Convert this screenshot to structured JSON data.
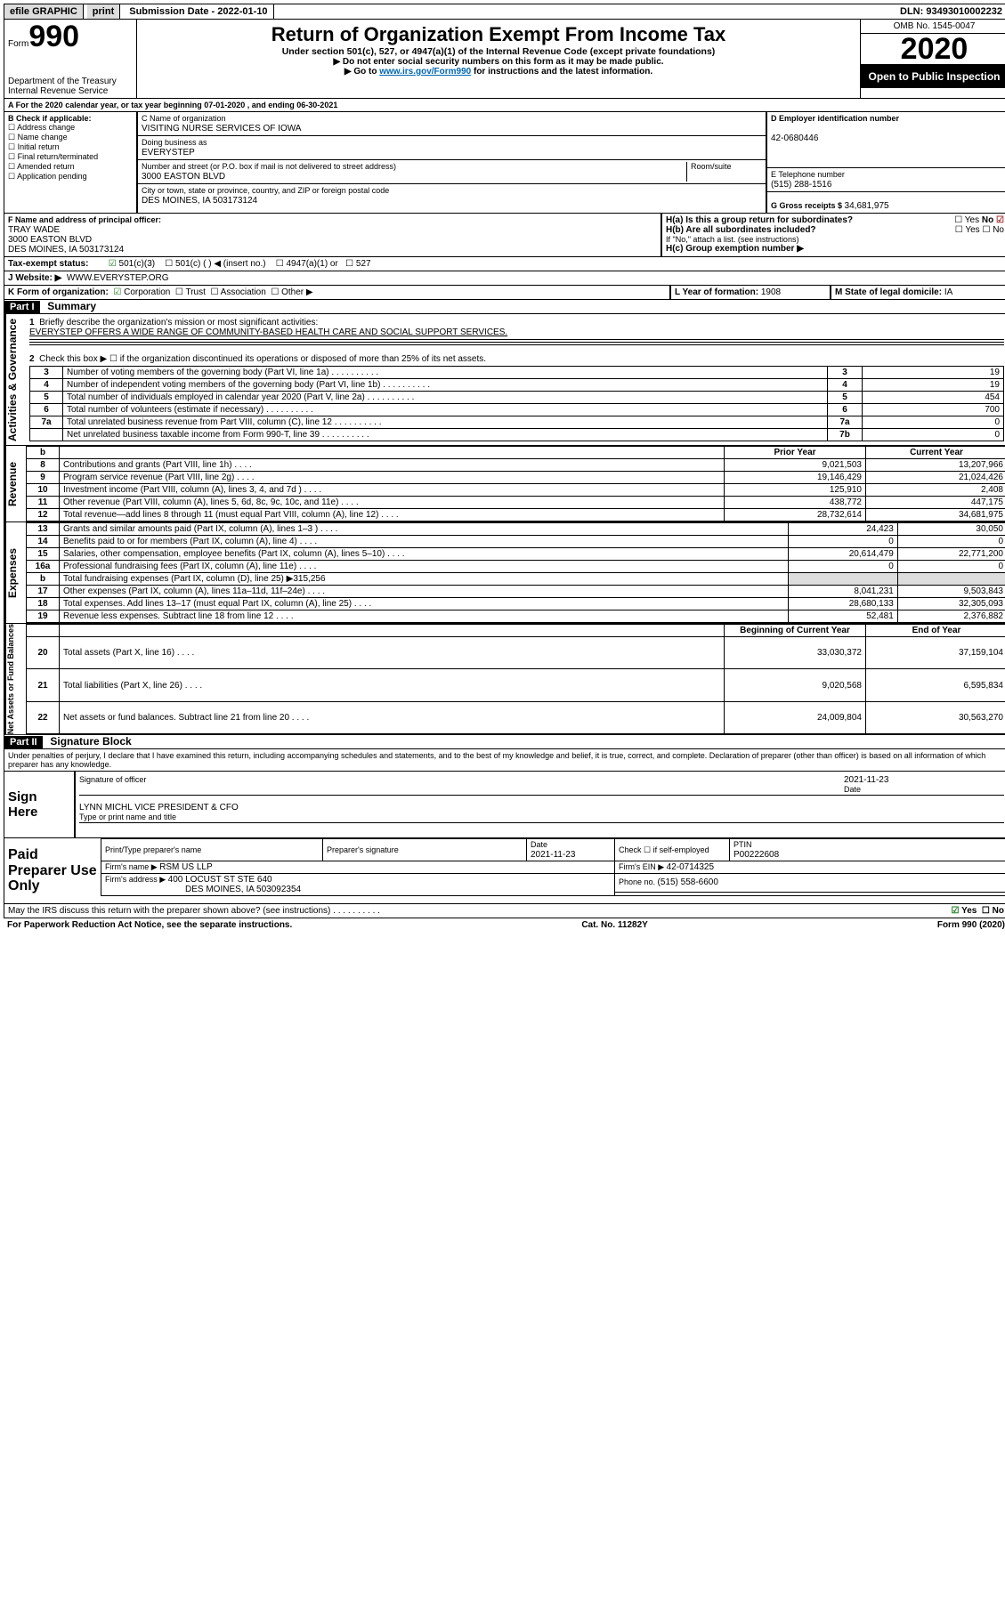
{
  "top_bar": {
    "efile": "efile GRAPHIC",
    "print": "print",
    "sub_label": "Submission Date - ",
    "sub_date": "2022-01-10",
    "dln_label": "DLN: ",
    "dln": "93493010002232"
  },
  "header": {
    "form_label": "Form",
    "form_num": "990",
    "dept": "Department of the Treasury",
    "irs": "Internal Revenue Service",
    "title": "Return of Organization Exempt From Income Tax",
    "subtitle": "Under section 501(c), 527, or 4947(a)(1) of the Internal Revenue Code (except private foundations)",
    "line1": "Do not enter social security numbers on this form as it may be made public.",
    "line2_pre": "Go to ",
    "line2_link": "www.irs.gov/Form990",
    "line2_post": " for instructions and the latest information.",
    "omb": "OMB No. 1545-0047",
    "year": "2020",
    "open": "Open to Public Inspection"
  },
  "period": {
    "text": "For the 2020 calendar year, or tax year beginning 07-01-2020    , and ending 06-30-2021"
  },
  "b_block": {
    "label": "B Check if applicable:",
    "opts": [
      "Address change",
      "Name change",
      "Initial return",
      "Final return/terminated",
      "Amended return",
      "Application pending"
    ]
  },
  "c_block": {
    "name_lbl": "C Name of organization",
    "name": "VISITING NURSE SERVICES OF IOWA",
    "dba_lbl": "Doing business as",
    "dba": "EVERYSTEP",
    "addr_lbl": "Number and street (or P.O. box if mail is not delivered to street address)",
    "room_lbl": "Room/suite",
    "addr": "3000 EASTON BLVD",
    "city_lbl": "City or town, state or province, country, and ZIP or foreign postal code",
    "city": "DES MOINES, IA  503173124"
  },
  "d_block": {
    "ein_lbl": "D Employer identification number",
    "ein": "42-0680446",
    "tel_lbl": "E Telephone number",
    "tel": "(515) 288-1516",
    "gross_lbl": "G Gross receipts $ ",
    "gross": "34,681,975"
  },
  "f_block": {
    "lbl": "F Name and address of principal officer:",
    "name": "TRAY WADE",
    "addr1": "3000 EASTON BLVD",
    "addr2": "DES MOINES, IA  503173124"
  },
  "h_block": {
    "ha_lbl": "H(a)  Is this a group return for subordinates?",
    "hb_lbl": "H(b)  Are all subordinates included?",
    "hb_note": "If \"No,\" attach a list. (see instructions)",
    "hc_lbl": "H(c)  Group exemption number ▶",
    "yes": "Yes",
    "no": "No"
  },
  "i_block": {
    "lbl": "Tax-exempt status:",
    "o1": "501(c)(3)",
    "o2": "501(c) (  ) ◀ (insert no.)",
    "o3": "4947(a)(1) or",
    "o4": "527"
  },
  "j_block": {
    "lbl": "J    Website: ▶",
    "val": "WWW.EVERYSTEP.ORG"
  },
  "k_block": {
    "lbl": "K Form of organization:",
    "o1": "Corporation",
    "o2": "Trust",
    "o3": "Association",
    "o4": "Other ▶"
  },
  "l_block": {
    "lbl": "L Year of formation: ",
    "val": "1908"
  },
  "m_block": {
    "lbl": "M State of legal domicile: ",
    "val": "IA"
  },
  "part1": {
    "hdr": "Part I",
    "title": "Summary"
  },
  "summary": {
    "q1_lbl": "Briefly describe the organization's mission or most significant activities:",
    "q1_val": "EVERYSTEP OFFERS A WIDE RANGE OF COMMUNITY-BASED HEALTH CARE AND SOCIAL SUPPORT SERVICES.",
    "q2_lbl": "Check this box ▶ ☐  if the organization discontinued its operations or disposed of more than 25% of its net assets.",
    "rows_gov": [
      {
        "n": "3",
        "t": "Number of voting members of the governing body (Part VI, line 1a)",
        "box": "3",
        "v": "19"
      },
      {
        "n": "4",
        "t": "Number of independent voting members of the governing body (Part VI, line 1b)",
        "box": "4",
        "v": "19"
      },
      {
        "n": "5",
        "t": "Total number of individuals employed in calendar year 2020 (Part V, line 2a)",
        "box": "5",
        "v": "454"
      },
      {
        "n": "6",
        "t": "Total number of volunteers (estimate if necessary)",
        "box": "6",
        "v": "700"
      },
      {
        "n": "7a",
        "t": "Total unrelated business revenue from Part VIII, column (C), line 12",
        "box": "7a",
        "v": "0"
      },
      {
        "n": "",
        "t": "Net unrelated business taxable income from Form 990-T, line 39",
        "box": "7b",
        "v": "0"
      }
    ],
    "col_prior": "Prior Year",
    "col_curr": "Current Year",
    "rows_rev": [
      {
        "n": "8",
        "t": "Contributions and grants (Part VIII, line 1h)",
        "p": "9,021,503",
        "c": "13,207,966"
      },
      {
        "n": "9",
        "t": "Program service revenue (Part VIII, line 2g)",
        "p": "19,146,429",
        "c": "21,024,426"
      },
      {
        "n": "10",
        "t": "Investment income (Part VIII, column (A), lines 3, 4, and 7d )",
        "p": "125,910",
        "c": "2,408"
      },
      {
        "n": "11",
        "t": "Other revenue (Part VIII, column (A), lines 5, 6d, 8c, 9c, 10c, and 11e)",
        "p": "438,772",
        "c": "447,175"
      },
      {
        "n": "12",
        "t": "Total revenue—add lines 8 through 11 (must equal Part VIII, column (A), line 12)",
        "p": "28,732,614",
        "c": "34,681,975"
      }
    ],
    "rows_exp": [
      {
        "n": "13",
        "t": "Grants and similar amounts paid (Part IX, column (A), lines 1–3 )",
        "p": "24,423",
        "c": "30,050"
      },
      {
        "n": "14",
        "t": "Benefits paid to or for members (Part IX, column (A), line 4)",
        "p": "0",
        "c": "0"
      },
      {
        "n": "15",
        "t": "Salaries, other compensation, employee benefits (Part IX, column (A), lines 5–10)",
        "p": "20,614,479",
        "c": "22,771,200"
      },
      {
        "n": "16a",
        "t": "Professional fundraising fees (Part IX, column (A), line 11e)",
        "p": "0",
        "c": "0"
      },
      {
        "n": "b",
        "t": "Total fundraising expenses (Part IX, column (D), line 25) ▶315,256",
        "p": "",
        "c": "",
        "grey": true
      },
      {
        "n": "17",
        "t": "Other expenses (Part IX, column (A), lines 11a–11d, 11f–24e)",
        "p": "8,041,231",
        "c": "9,503,843"
      },
      {
        "n": "18",
        "t": "Total expenses. Add lines 13–17 (must equal Part IX, column (A), line 25)",
        "p": "28,680,133",
        "c": "32,305,093"
      },
      {
        "n": "19",
        "t": "Revenue less expenses. Subtract line 18 from line 12",
        "p": "52,481",
        "c": "2,376,882"
      }
    ],
    "col_begin": "Beginning of Current Year",
    "col_end": "End of Year",
    "rows_na": [
      {
        "n": "20",
        "t": "Total assets (Part X, line 16)",
        "p": "33,030,372",
        "c": "37,159,104"
      },
      {
        "n": "21",
        "t": "Total liabilities (Part X, line 26)",
        "p": "9,020,568",
        "c": "6,595,834"
      },
      {
        "n": "22",
        "t": "Net assets or fund balances. Subtract line 21 from line 20",
        "p": "24,009,804",
        "c": "30,563,270"
      }
    ],
    "vlab_gov": "Activities & Governance",
    "vlab_rev": "Revenue",
    "vlab_exp": "Expenses",
    "vlab_na": "Net Assets or Fund Balances"
  },
  "part2": {
    "hdr": "Part II",
    "title": "Signature Block"
  },
  "sig": {
    "perjury": "Under penalties of perjury, I declare that I have examined this return, including accompanying schedules and statements, and to the best of my knowledge and belief, it is true, correct, and complete. Declaration of preparer (other than officer) is based on all information of which preparer has any knowledge.",
    "sign_here": "Sign Here",
    "sig_officer": "Signature of officer",
    "date_lbl": "Date",
    "date_val": "2021-11-23",
    "officer_name": "LYNN MICHL  VICE PRESIDENT & CFO",
    "type_name": "Type or print name and title",
    "paid_prep": "Paid Preparer Use Only",
    "prep_name_lbl": "Print/Type preparer's name",
    "prep_sig_lbl": "Preparer's signature",
    "prep_date_lbl": "Date",
    "prep_date_val": "2021-11-23",
    "self_emp": "Check ☐  if self-employed",
    "ptin_lbl": "PTIN",
    "ptin": "P00222608",
    "firm_name_lbl": "Firm's name    ▶ ",
    "firm_name": "RSM US LLP",
    "firm_ein_lbl": "Firm's EIN ▶ ",
    "firm_ein": "42-0714325",
    "firm_addr_lbl": "Firm's address ▶ ",
    "firm_addr1": "400 LOCUST ST STE 640",
    "firm_addr2": "DES MOINES, IA  503092354",
    "phone_lbl": "Phone no. ",
    "phone": "(515) 558-6600",
    "discuss": "May the IRS discuss this return with the preparer shown above? (see instructions)"
  },
  "footer": {
    "l": "For Paperwork Reduction Act Notice, see the separate instructions.",
    "c": "Cat. No. 11282Y",
    "r": "Form 990 (2020)"
  }
}
